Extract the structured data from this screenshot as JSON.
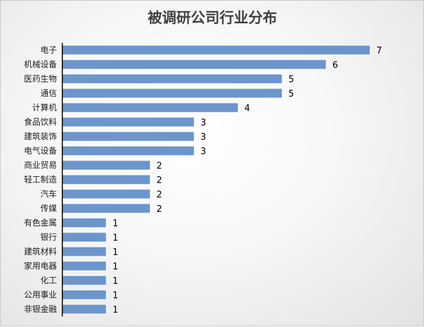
{
  "chart_data": {
    "type": "bar",
    "orientation": "horizontal",
    "title": "被调研公司行业分布",
    "categories": [
      "电子",
      "机械设备",
      "医药生物",
      "通信",
      "计算机",
      "食品饮料",
      "建筑装饰",
      "电气设备",
      "商业贸易",
      "轻工制造",
      "汽车",
      "传媒",
      "有色金属",
      "银行",
      "建筑材料",
      "家用电器",
      "化工",
      "公用事业",
      "非银金融"
    ],
    "values": [
      7,
      6,
      5,
      5,
      4,
      3,
      3,
      3,
      2,
      2,
      2,
      2,
      1,
      1,
      1,
      1,
      1,
      1,
      1
    ],
    "xlim": [
      0,
      7.5
    ],
    "data_labels": true,
    "grid": false,
    "legend": "none",
    "bar_color": "#6c95cc",
    "bar_edge_color": "#ffffff",
    "axis_color": "#000000"
  }
}
